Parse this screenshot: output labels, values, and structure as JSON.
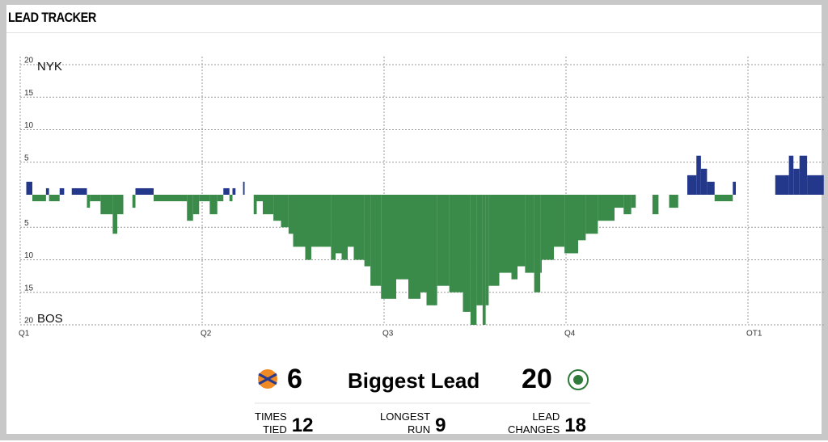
{
  "header": {
    "title": "LEAD TRACKER"
  },
  "chart_data": {
    "type": "bar",
    "team_labels": {
      "top": "NYK",
      "bottom": "BOS"
    },
    "colors": {
      "positive": "#23388a",
      "negative": "#3a8a4a"
    },
    "x": [
      0.4,
      0.8,
      1.7,
      1.9,
      2.6,
      2.9,
      3.4,
      4.4,
      4.6,
      5.3,
      6.1,
      6.4,
      6.8,
      7.4,
      7.6,
      8.8,
      11.0,
      11.4,
      11.8,
      12.5,
      13.0,
      13.4,
      13.8,
      14.0,
      14.2,
      14.7,
      14.8,
      15.4,
      15.6,
      16.0,
      16.7,
      17.2,
      17.7,
      18.0,
      18.8,
      19.2,
      20.5,
      20.8,
      21.2,
      21.6,
      22.0,
      22.7,
      23.1,
      23.8,
      24.8,
      25.6,
      26.4,
      26.8,
      27.5,
      28.3,
      29.2,
      29.7,
      30.1,
      30.5,
      30.7,
      30.9,
      31.6,
      32.4,
      32.8,
      33.3,
      33.9,
      34.3,
      34.4,
      35.2,
      35.9,
      36.8,
      37.3,
      38.1,
      39.2,
      39.8,
      40.3,
      40.6,
      41.7,
      42.1,
      42.8,
      43.4,
      44.0,
      44.6,
      44.9,
      45.3,
      45.8,
      47.0,
      47.2,
      49.8,
      50.7,
      51.0,
      51.4,
      51.9
    ],
    "values": [
      2,
      -1,
      1,
      -1,
      1,
      0,
      1,
      -2,
      -1,
      -3,
      -6,
      -3,
      0,
      -2,
      1,
      -1,
      -4,
      -3,
      -1,
      -3,
      -1,
      1,
      -1,
      1,
      0,
      2,
      0,
      -3,
      -1,
      -3,
      -4,
      -5,
      -6,
      -8,
      -10,
      -8,
      -10,
      -9,
      -10,
      -8,
      -10,
      -11,
      -14,
      -16,
      -13,
      -16,
      -15,
      -17,
      -14,
      -15,
      -18,
      -20,
      -17,
      -20,
      -17,
      -14,
      -12,
      -13,
      -11,
      -12,
      -15,
      -12,
      -10,
      -8,
      -9,
      -7,
      -6,
      -4,
      -2,
      -3,
      -2,
      0,
      -3,
      0,
      -2,
      0,
      3,
      6,
      4,
      2,
      -1,
      2,
      0,
      3,
      6,
      4,
      6,
      3
    ],
    "xlim": [
      0,
      53
    ],
    "xticks": [
      {
        "value": 0,
        "label": "Q1"
      },
      {
        "value": 12,
        "label": "Q2"
      },
      {
        "value": 24,
        "label": "Q3"
      },
      {
        "value": 36,
        "label": "Q4"
      },
      {
        "value": 48,
        "label": "OT1"
      }
    ],
    "ylim": [
      -20,
      20
    ],
    "yticks": [
      {
        "value": -20,
        "label": "20"
      },
      {
        "value": -15,
        "label": "15"
      },
      {
        "value": -10,
        "label": "10"
      },
      {
        "value": -5,
        "label": "5"
      },
      5,
      10,
      15,
      20
    ],
    "grid": true
  },
  "stats": {
    "biggest_lead": {
      "label": "Biggest Lead",
      "nyk": 6,
      "bos": 20
    },
    "rows": [
      {
        "label": [
          "TIMES",
          "TIED"
        ],
        "value": 12
      },
      {
        "label": [
          "LONGEST",
          "RUN"
        ],
        "value": 9
      },
      {
        "label": [
          "LEAD",
          "CHANGES"
        ],
        "value": 18
      }
    ]
  }
}
